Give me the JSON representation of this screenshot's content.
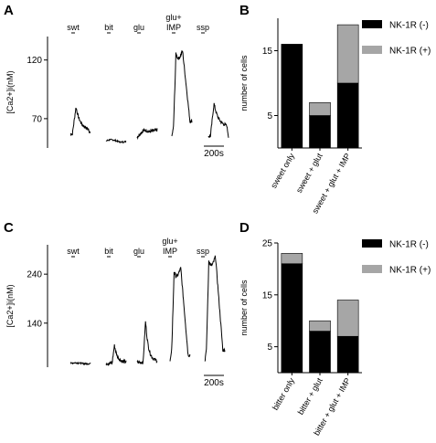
{
  "chart_data": [
    {
      "panel": "A",
      "type": "line",
      "ylabel": "[Ca2+]i(nM)",
      "yticks": [
        70,
        120
      ],
      "ylim": [
        45,
        140
      ],
      "stimuli": [
        "swt",
        "bit",
        "glu",
        "glu+ IMP",
        "ssp"
      ],
      "scalebar": "200s",
      "traces": [
        {
          "name": "swt",
          "baseline": 57,
          "peak": 80,
          "end": 60,
          "shape": "peak"
        },
        {
          "name": "bit",
          "baseline": 51,
          "peak": 53,
          "end": 51,
          "shape": "flat"
        },
        {
          "name": "glu",
          "baseline": 54,
          "peak": 60,
          "end": 58,
          "shape": "bump"
        },
        {
          "name": "glu+ IMP",
          "baseline": 55,
          "peak": 125,
          "end": 68,
          "shape": "plateau"
        },
        {
          "name": "ssp",
          "baseline": 55,
          "peak": 83,
          "end": 63,
          "shape": "peak"
        }
      ]
    },
    {
      "panel": "B",
      "type": "bar",
      "stacked": true,
      "ylabel": "number of cells",
      "yticks": [
        5,
        15
      ],
      "ylim": [
        0,
        20
      ],
      "categories": [
        "sweet only",
        "sweet + glut",
        "sweet + glut + IMP"
      ],
      "series": [
        {
          "name": "NK-1R (-)",
          "color": "#000000",
          "values": [
            16,
            5,
            10
          ]
        },
        {
          "name": "NK-1R (+)",
          "color": "#a6a6a6",
          "values": [
            0,
            2,
            9
          ]
        }
      ],
      "legend": "top-right"
    },
    {
      "panel": "C",
      "type": "line",
      "ylabel": "[Ca2+]i(nM)",
      "yticks": [
        140,
        240
      ],
      "ylim": [
        50,
        300
      ],
      "stimuli": [
        "swt",
        "bit",
        "glu",
        "glu+ IMP",
        "ssp"
      ],
      "scalebar": "200s",
      "traces": [
        {
          "name": "swt",
          "baseline": 58,
          "peak": 60,
          "end": 58,
          "shape": "flat"
        },
        {
          "name": "bit",
          "baseline": 58,
          "peak": 95,
          "end": 60,
          "shape": "spike"
        },
        {
          "name": "glu",
          "baseline": 60,
          "peak": 145,
          "end": 62,
          "shape": "spike"
        },
        {
          "name": "glu+ IMP",
          "baseline": 62,
          "peak": 245,
          "end": 75,
          "shape": "plateau"
        },
        {
          "name": "ssp",
          "baseline": 62,
          "peak": 268,
          "end": 85,
          "shape": "plateau"
        }
      ]
    },
    {
      "panel": "D",
      "type": "bar",
      "stacked": true,
      "ylabel": "number of cells",
      "yticks": [
        5,
        15,
        25
      ],
      "ylim": [
        0,
        25
      ],
      "categories": [
        "bitter only",
        "bitter + glut",
        "bitter + glut + IMP"
      ],
      "series": [
        {
          "name": "NK-1R (-)",
          "color": "#000000",
          "values": [
            21,
            8,
            7
          ]
        },
        {
          "name": "NK-1R (+)",
          "color": "#a6a6a6",
          "values": [
            2,
            2,
            7
          ]
        }
      ],
      "legend": "top-right"
    }
  ]
}
